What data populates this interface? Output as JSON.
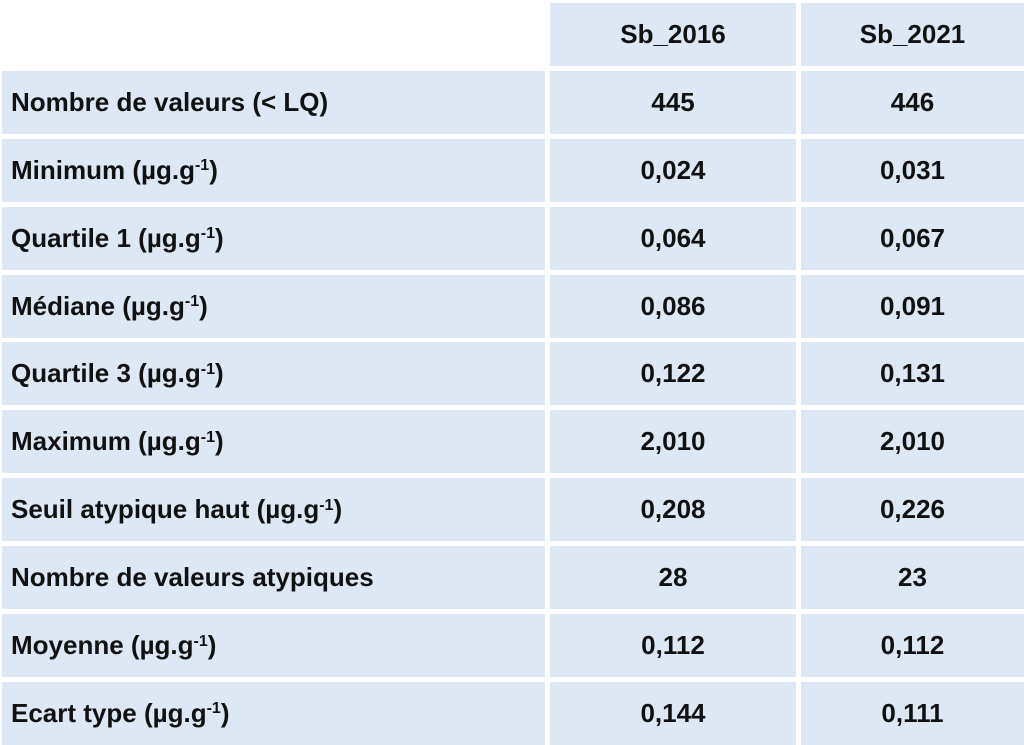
{
  "table": {
    "columns": [
      "Sb_2016",
      "Sb_2021"
    ],
    "rows": [
      {
        "label": "Nombre de valeurs (< LQ)",
        "values": [
          "445",
          "446"
        ]
      },
      {
        "label": "Minimum (µg.g",
        "sup": "-1",
        "tail": ")",
        "values": [
          "0,024",
          "0,031"
        ]
      },
      {
        "label": "Quartile 1 (µg.g",
        "sup": "-1",
        "tail": ")",
        "values": [
          "0,064",
          "0,067"
        ]
      },
      {
        "label": "Médiane (µg.g",
        "sup": "-1",
        "tail": ")",
        "values": [
          "0,086",
          "0,091"
        ]
      },
      {
        "label": "Quartile 3 (µg.g",
        "sup": "-1",
        "tail": ")",
        "values": [
          "0,122",
          "0,131"
        ]
      },
      {
        "label": "Maximum (µg.g",
        "sup": "-1",
        "tail": ")",
        "values": [
          "2,010",
          "2,010"
        ]
      },
      {
        "label": "Seuil atypique haut (µg.g",
        "sup": "-1",
        "tail": ")",
        "values": [
          "0,208",
          "0,226"
        ]
      },
      {
        "label": "Nombre de valeurs atypiques",
        "values": [
          "28",
          "23"
        ]
      },
      {
        "label": "Moyenne (µg.g",
        "sup": "-1",
        "tail": ")",
        "values": [
          "0,112",
          "0,112"
        ]
      },
      {
        "label": "Ecart type (µg.g",
        "sup": "-1",
        "tail": ")",
        "values": [
          "0,144",
          "0,111"
        ]
      }
    ]
  }
}
